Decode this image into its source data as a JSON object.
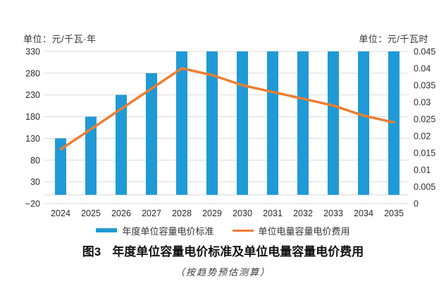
{
  "axes": {
    "left_unit": "单位：元/千瓦·年",
    "right_unit": "单位：元/千瓦时"
  },
  "chart_data": {
    "type": "bar",
    "categories": [
      "2024",
      "2025",
      "2026",
      "2027",
      "2028",
      "2029",
      "2030",
      "2031",
      "2032",
      "2033",
      "2034",
      "2035"
    ],
    "series": [
      {
        "name": "年度单位容量电价标准",
        "type": "bar",
        "axis": "left",
        "values": [
          130,
          180,
          230,
          280,
          330,
          330,
          330,
          330,
          330,
          330,
          330,
          330
        ]
      },
      {
        "name": "单位电量容量电价费用",
        "type": "line",
        "axis": "right",
        "values": [
          0.016,
          0.022,
          0.028,
          0.034,
          0.04,
          0.038,
          0.035,
          0.033,
          0.031,
          0.029,
          0.026,
          0.024
        ]
      }
    ],
    "left_axis": {
      "unit": "单位：元/千瓦·年",
      "min": -20,
      "max": 330,
      "tick_step": 50,
      "ticks": [
        330,
        280,
        230,
        180,
        130,
        80,
        30,
        -20
      ]
    },
    "right_axis": {
      "unit": "单位：元/千瓦时",
      "min": 0,
      "max": 0.045,
      "tick_step": 0.005,
      "ticks": [
        0.045,
        0.04,
        0.035,
        0.03,
        0.025,
        0.02,
        0.015,
        0.01,
        0.005,
        0
      ]
    },
    "grid": true,
    "legend_position": "bottom",
    "title": "图3 年度单位容量电价标准及单位电量容量电价费用"
  },
  "legend": {
    "items": [
      {
        "label": "年度单位容量电价标准",
        "swatch": "bar",
        "color": "#1F9AD6"
      },
      {
        "label": "单位电量容量电价费用",
        "swatch": "line",
        "color": "#ED7D31"
      }
    ]
  },
  "caption": {
    "label": "图3",
    "text": "年度单位容量电价标准及单位电量容量电价费用"
  },
  "footnote": "（按趋势预估测算）",
  "colors": {
    "bar": "#1F9AD6",
    "line": "#ED7D31",
    "grid": "#D9D9D9",
    "axis_text": "#2b2b2b"
  }
}
